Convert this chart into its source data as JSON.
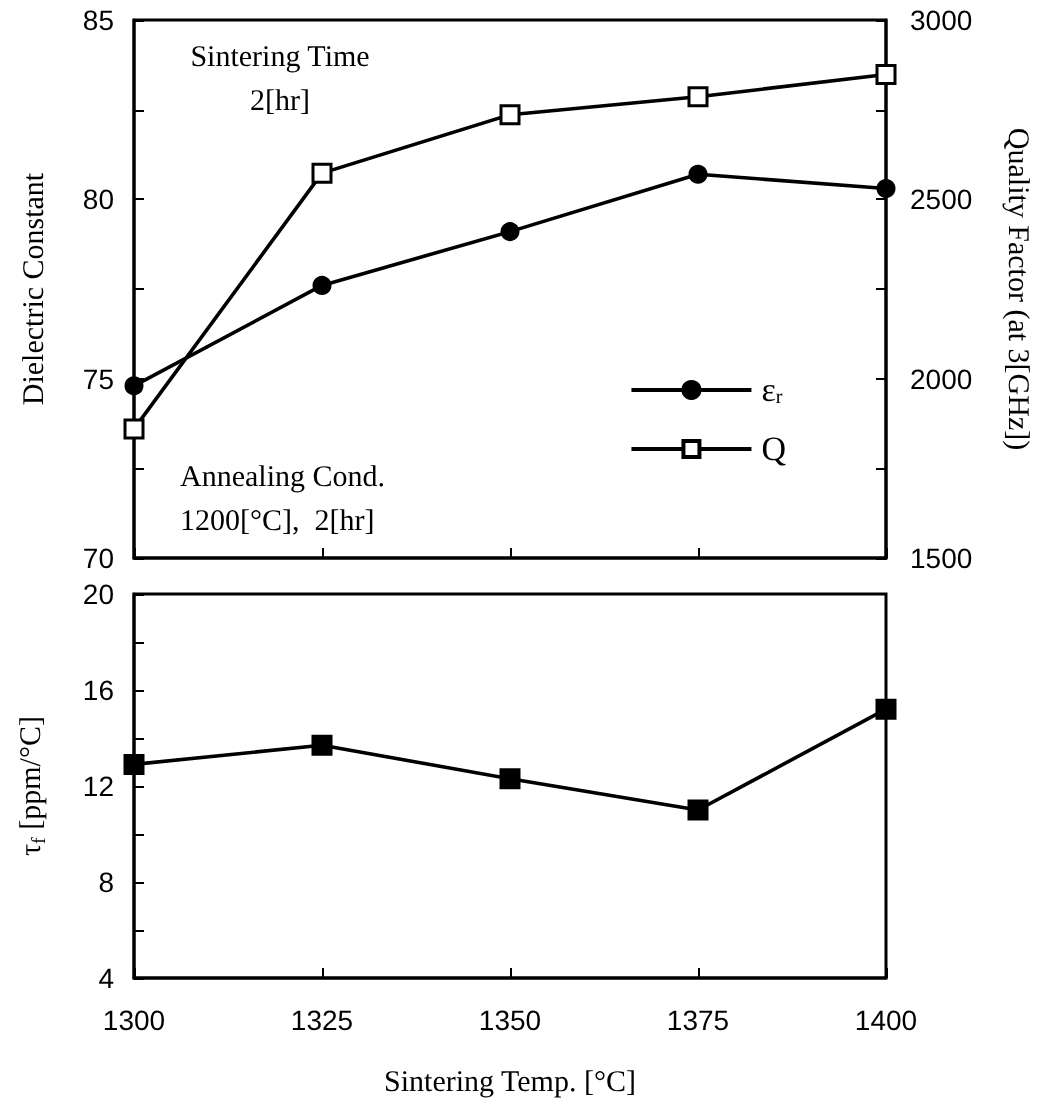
{
  "chart_data": [
    {
      "type": "line",
      "ylabel": "Dielectric Constant",
      "y2label": "Quality Factor (at 3[GHz])",
      "x": [
        1300,
        1325,
        1350,
        1375,
        1400
      ],
      "xlim": [
        1300,
        1400
      ],
      "xticks": [
        1300,
        1325,
        1350,
        1375,
        1400
      ],
      "tick_labels": "y",
      "ylim": [
        70,
        85
      ],
      "yticks": [
        70,
        {
          "value": 72.5,
          "label": null
        },
        75,
        {
          "value": 77.5,
          "label": null
        },
        80,
        {
          "value": 82.5,
          "label": null
        },
        85
      ],
      "y2lim": [
        1500,
        3000
      ],
      "y2ticks": [
        1500,
        {
          "value": 1750,
          "label": null
        },
        2000,
        {
          "value": 2250,
          "label": null
        },
        2500,
        {
          "value": 2750,
          "label": null
        },
        3000
      ],
      "series": [
        {
          "name": "ε$_{r}$",
          "color": "#000000",
          "marker": "circle",
          "values": [
            74.8,
            77.6,
            79.1,
            80.7,
            80.3
          ]
        },
        {
          "name": "Q",
          "color": "#000000",
          "marker": "square",
          "axis": "y2",
          "values": [
            1860,
            2573,
            2736,
            2786,
            2848
          ]
        }
      ],
      "legend": "bottom right",
      "grid": false,
      "line_style": "solid",
      "annotations": [
        "Sintering Time\n2[hr]",
        "Annealing Cond.\n1200[°C],  2[hr]"
      ]
    },
    {
      "type": "line",
      "xlabel": "Sintering Temp. [°C]",
      "ylabel": "τ$_{f}$ [ppm/°C]",
      "x": [
        1300,
        1325,
        1350,
        1375,
        1400
      ],
      "xlim": [
        1300,
        1400
      ],
      "xticks": [
        1300,
        1325,
        1350,
        1375,
        1400
      ],
      "ylim": [
        4,
        20
      ],
      "yticks": [
        4,
        {
          "value": 6,
          "label": null
        },
        8,
        {
          "value": 10,
          "label": null
        },
        12,
        {
          "value": 14,
          "label": null
        },
        16,
        {
          "value": 18,
          "label": null
        },
        20
      ],
      "color": "#000000",
      "marker": "square",
      "line_style": "solid",
      "grid": false,
      "legend": false,
      "values": [
        12.9,
        13.7,
        12.3,
        11.0,
        15.2
      ]
    }
  ]
}
